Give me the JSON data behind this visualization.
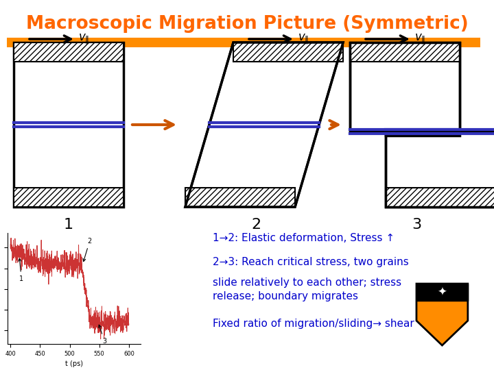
{
  "title": "Macroscopic Migration Picture (Symmetric)",
  "title_color": "#FF6600",
  "title_fontsize": 19,
  "bg_color": "#FFFFFF",
  "hatch_color": "#000000",
  "box_outline_color": "#000000",
  "orange_bar_color": "#FF8C00",
  "blue_line_color": "#3333BB",
  "arrow_color": "#CC5500",
  "text_color": "#0000CC",
  "annotations": [
    "1→2: Elastic deformation, Stress ↑",
    "2→3: Reach critical stress, two grains",
    "slide relatively to each other; stress",
    "release; boundary migrates",
    "Fixed ratio of migration/sliding→ shear"
  ]
}
